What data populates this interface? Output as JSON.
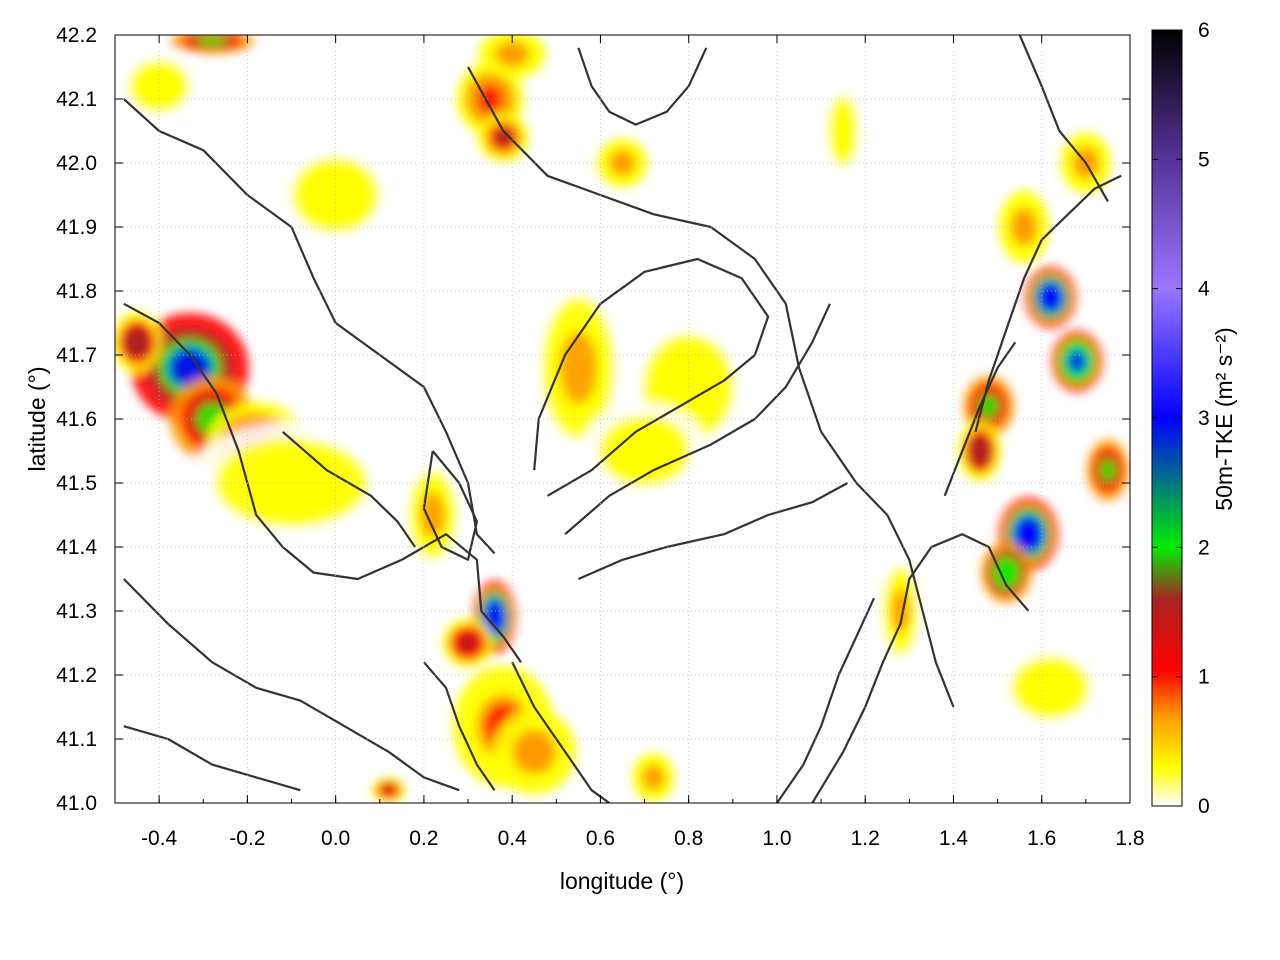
{
  "chart_data": {
    "type": "heatmap",
    "xlabel": "longitude (°)",
    "ylabel": "latitude (°)",
    "colorbar_label": "50m-TKE (m² s⁻²)",
    "xlim": [
      -0.5,
      1.8
    ],
    "ylim": [
      41.0,
      42.2
    ],
    "x_ticks": [
      "-0.4",
      "-0.2",
      "0.0",
      "0.2",
      "0.4",
      "0.6",
      "0.8",
      "1.0",
      "1.2",
      "1.4",
      "1.6",
      "1.8"
    ],
    "x_tick_values": [
      -0.4,
      -0.2,
      0.0,
      0.2,
      0.4,
      0.6,
      0.8,
      1.0,
      1.2,
      1.4,
      1.6,
      1.8
    ],
    "y_ticks": [
      "41.0",
      "41.1",
      "41.2",
      "41.3",
      "41.4",
      "41.5",
      "41.6",
      "41.7",
      "41.8",
      "41.9",
      "42.0",
      "42.1",
      "42.2"
    ],
    "y_tick_values": [
      41.0,
      41.1,
      41.2,
      41.3,
      41.4,
      41.5,
      41.6,
      41.7,
      41.8,
      41.9,
      42.0,
      42.1,
      42.2
    ],
    "colorbar_range": [
      0,
      6
    ],
    "colorbar_ticks": [
      "0",
      "1",
      "2",
      "3",
      "4",
      "5",
      "6"
    ],
    "colorbar_tick_values": [
      0,
      1,
      2,
      3,
      4,
      5,
      6
    ],
    "grid": true,
    "colormap": [
      {
        "v": 0.0,
        "color": "#ffffff"
      },
      {
        "v": 0.3,
        "color": "#ffff00"
      },
      {
        "v": 0.7,
        "color": "#ff9900"
      },
      {
        "v": 1.05,
        "color": "#ff0000"
      },
      {
        "v": 1.6,
        "color": "#aa2222"
      },
      {
        "v": 2.0,
        "color": "#00ee00"
      },
      {
        "v": 3.0,
        "color": "#0000ff"
      },
      {
        "v": 4.0,
        "color": "#9977ff"
      },
      {
        "v": 5.0,
        "color": "#553399"
      },
      {
        "v": 6.0,
        "color": "#000000"
      }
    ],
    "tke_hotspots": [
      {
        "lon": -0.33,
        "lat": 41.68,
        "tke": 3.6,
        "rlon": 0.14,
        "rlat": 0.09
      },
      {
        "lon": -0.28,
        "lat": 41.6,
        "tke": 2.6,
        "rlon": 0.1,
        "rlat": 0.07
      },
      {
        "lon": -0.18,
        "lat": 41.56,
        "tke": 1.3,
        "rlon": 0.12,
        "rlat": 0.07
      },
      {
        "lon": -0.45,
        "lat": 41.72,
        "tke": 2.2,
        "rlon": 0.06,
        "rlat": 0.05
      },
      {
        "lon": -0.1,
        "lat": 41.5,
        "tke": 0.6,
        "rlon": 0.25,
        "rlat": 0.1
      },
      {
        "lon": 0.36,
        "lat": 41.29,
        "tke": 4.2,
        "rlon": 0.05,
        "rlat": 0.06
      },
      {
        "lon": 0.3,
        "lat": 41.25,
        "tke": 2.0,
        "rlon": 0.06,
        "rlat": 0.04
      },
      {
        "lon": 0.38,
        "lat": 41.12,
        "tke": 1.2,
        "rlon": 0.12,
        "rlat": 0.1
      },
      {
        "lon": 0.45,
        "lat": 41.08,
        "tke": 1.0,
        "rlon": 0.1,
        "rlat": 0.07
      },
      {
        "lon": 0.55,
        "lat": 41.68,
        "tke": 0.8,
        "rlon": 0.12,
        "rlat": 0.16
      },
      {
        "lon": 0.8,
        "lat": 41.65,
        "tke": 0.7,
        "rlon": 0.15,
        "rlat": 0.12
      },
      {
        "lon": 0.7,
        "lat": 41.55,
        "tke": 0.6,
        "rlon": 0.15,
        "rlat": 0.08
      },
      {
        "lon": 0.22,
        "lat": 41.45,
        "tke": 0.8,
        "rlon": 0.08,
        "rlat": 0.1
      },
      {
        "lon": 0.35,
        "lat": 42.1,
        "tke": 1.3,
        "rlon": 0.08,
        "rlat": 0.06
      },
      {
        "lon": 0.38,
        "lat": 42.04,
        "tke": 1.8,
        "rlon": 0.06,
        "rlat": 0.04
      },
      {
        "lon": 0.65,
        "lat": 42.0,
        "tke": 1.0,
        "rlon": 0.06,
        "rlat": 0.04
      },
      {
        "lon": 0.4,
        "lat": 42.17,
        "tke": 1.1,
        "rlon": 0.08,
        "rlat": 0.04
      },
      {
        "lon": 1.62,
        "lat": 41.79,
        "tke": 4.0,
        "rlon": 0.06,
        "rlat": 0.05
      },
      {
        "lon": 1.68,
        "lat": 41.69,
        "tke": 3.8,
        "rlon": 0.06,
        "rlat": 0.05
      },
      {
        "lon": 1.57,
        "lat": 41.42,
        "tke": 4.3,
        "rlon": 0.07,
        "rlat": 0.06
      },
      {
        "lon": 1.52,
        "lat": 41.36,
        "tke": 3.0,
        "rlon": 0.06,
        "rlat": 0.05
      },
      {
        "lon": 1.48,
        "lat": 41.62,
        "tke": 2.4,
        "rlon": 0.06,
        "rlat": 0.05
      },
      {
        "lon": 1.46,
        "lat": 41.55,
        "tke": 2.2,
        "rlon": 0.05,
        "rlat": 0.05
      },
      {
        "lon": 1.75,
        "lat": 41.52,
        "tke": 2.4,
        "rlon": 0.05,
        "rlat": 0.05
      },
      {
        "lon": 1.56,
        "lat": 41.9,
        "tke": 1.0,
        "rlon": 0.06,
        "rlat": 0.06
      },
      {
        "lon": 1.7,
        "lat": 42.0,
        "tke": 1.0,
        "rlon": 0.06,
        "rlat": 0.05
      },
      {
        "lon": 1.28,
        "lat": 41.3,
        "tke": 0.9,
        "rlon": 0.06,
        "rlat": 0.1
      },
      {
        "lon": 0.72,
        "lat": 41.04,
        "tke": 1.1,
        "rlon": 0.05,
        "rlat": 0.04
      },
      {
        "lon": 0.12,
        "lat": 41.02,
        "tke": 2.0,
        "rlon": 0.04,
        "rlat": 0.02
      },
      {
        "lon": -0.28,
        "lat": 42.19,
        "tke": 2.6,
        "rlon": 0.1,
        "rlat": 0.02
      },
      {
        "lon": 1.62,
        "lat": 41.18,
        "tke": 0.5,
        "rlon": 0.18,
        "rlat": 0.1
      },
      {
        "lon": 0.0,
        "lat": 41.95,
        "tke": 0.4,
        "rlon": 0.2,
        "rlat": 0.12
      },
      {
        "lon": -0.4,
        "lat": 42.12,
        "tke": 0.7,
        "rlon": 0.1,
        "rlat": 0.06
      },
      {
        "lon": 1.15,
        "lat": 42.05,
        "tke": 0.6,
        "rlon": 0.05,
        "rlat": 0.08
      }
    ],
    "contour_lines": [
      [
        [
          -0.48,
          41.78
        ],
        [
          -0.4,
          41.75
        ],
        [
          -0.33,
          41.7
        ],
        [
          -0.27,
          41.64
        ],
        [
          -0.22,
          41.55
        ],
        [
          -0.18,
          41.45
        ],
        [
          -0.12,
          41.4
        ],
        [
          -0.05,
          41.36
        ],
        [
          0.05,
          41.35
        ],
        [
          0.15,
          41.38
        ],
        [
          0.25,
          41.42
        ],
        [
          0.32,
          41.38
        ],
        [
          0.33,
          41.3
        ],
        [
          0.38,
          41.26
        ],
        [
          0.42,
          41.22
        ]
      ],
      [
        [
          -0.48,
          42.1
        ],
        [
          -0.4,
          42.05
        ],
        [
          -0.3,
          42.02
        ],
        [
          -0.2,
          41.95
        ],
        [
          -0.1,
          41.9
        ],
        [
          -0.05,
          41.82
        ],
        [
          0.0,
          41.75
        ],
        [
          0.1,
          41.7
        ],
        [
          0.2,
          41.65
        ],
        [
          0.25,
          41.58
        ],
        [
          0.3,
          41.5
        ],
        [
          0.32,
          41.42
        ],
        [
          0.36,
          41.39
        ]
      ],
      [
        [
          0.4,
          41.22
        ],
        [
          0.45,
          41.15
        ],
        [
          0.52,
          41.08
        ],
        [
          0.58,
          41.02
        ],
        [
          0.62,
          41.0
        ]
      ],
      [
        [
          0.3,
          42.15
        ],
        [
          0.38,
          42.05
        ],
        [
          0.48,
          41.98
        ],
        [
          0.6,
          41.95
        ],
        [
          0.72,
          41.92
        ],
        [
          0.85,
          41.9
        ],
        [
          0.95,
          41.85
        ],
        [
          1.02,
          41.78
        ],
        [
          1.05,
          41.68
        ],
        [
          1.1,
          41.58
        ],
        [
          1.18,
          41.5
        ],
        [
          1.25,
          41.45
        ],
        [
          1.3,
          41.38
        ],
        [
          1.33,
          41.3
        ],
        [
          1.36,
          41.22
        ],
        [
          1.4,
          41.15
        ]
      ],
      [
        [
          0.48,
          41.48
        ],
        [
          0.58,
          41.52
        ],
        [
          0.68,
          41.58
        ],
        [
          0.78,
          41.62
        ],
        [
          0.88,
          41.66
        ],
        [
          0.95,
          41.7
        ],
        [
          0.98,
          41.76
        ],
        [
          0.92,
          41.82
        ],
        [
          0.82,
          41.85
        ],
        [
          0.7,
          41.83
        ],
        [
          0.6,
          41.78
        ],
        [
          0.52,
          41.7
        ],
        [
          0.46,
          41.6
        ],
        [
          0.45,
          41.52
        ]
      ],
      [
        [
          0.52,
          41.42
        ],
        [
          0.62,
          41.48
        ],
        [
          0.72,
          41.52
        ],
        [
          0.85,
          41.56
        ],
        [
          0.95,
          41.6
        ],
        [
          1.02,
          41.65
        ],
        [
          1.08,
          41.72
        ],
        [
          1.12,
          41.78
        ]
      ],
      [
        [
          0.55,
          41.35
        ],
        [
          0.65,
          41.38
        ],
        [
          0.75,
          41.4
        ],
        [
          0.88,
          41.42
        ],
        [
          0.98,
          41.45
        ],
        [
          1.08,
          41.47
        ],
        [
          1.16,
          41.5
        ]
      ],
      [
        [
          1.08,
          41.0
        ],
        [
          1.15,
          41.08
        ],
        [
          1.2,
          41.15
        ],
        [
          1.24,
          41.22
        ],
        [
          1.28,
          41.28
        ],
        [
          1.3,
          41.35
        ],
        [
          1.35,
          41.4
        ],
        [
          1.42,
          41.42
        ],
        [
          1.48,
          41.4
        ],
        [
          1.52,
          41.34
        ],
        [
          1.57,
          41.3
        ]
      ],
      [
        [
          1.0,
          41.0
        ],
        [
          1.06,
          41.06
        ],
        [
          1.1,
          41.12
        ],
        [
          1.14,
          41.2
        ],
        [
          1.18,
          41.26
        ],
        [
          1.22,
          41.32
        ]
      ],
      [
        [
          1.45,
          41.58
        ],
        [
          1.48,
          41.66
        ],
        [
          1.52,
          41.74
        ],
        [
          1.56,
          41.82
        ],
        [
          1.6,
          41.88
        ],
        [
          1.66,
          41.92
        ],
        [
          1.72,
          41.96
        ],
        [
          1.78,
          41.98
        ]
      ],
      [
        [
          1.38,
          41.48
        ],
        [
          1.42,
          41.55
        ],
        [
          1.46,
          41.62
        ],
        [
          1.5,
          41.68
        ],
        [
          1.54,
          41.72
        ]
      ],
      [
        [
          0.22,
          41.55
        ],
        [
          0.28,
          41.5
        ],
        [
          0.32,
          41.44
        ],
        [
          0.3,
          41.38
        ],
        [
          0.24,
          41.4
        ],
        [
          0.2,
          41.46
        ],
        [
          0.22,
          41.55
        ]
      ],
      [
        [
          -0.12,
          41.58
        ],
        [
          -0.02,
          41.52
        ],
        [
          0.08,
          41.48
        ],
        [
          0.14,
          41.44
        ],
        [
          0.18,
          41.4
        ]
      ],
      [
        [
          -0.48,
          41.35
        ],
        [
          -0.38,
          41.28
        ],
        [
          -0.28,
          41.22
        ],
        [
          -0.18,
          41.18
        ],
        [
          -0.08,
          41.16
        ],
        [
          0.02,
          41.12
        ],
        [
          0.12,
          41.08
        ],
        [
          0.2,
          41.04
        ],
        [
          0.28,
          41.02
        ]
      ],
      [
        [
          -0.48,
          41.12
        ],
        [
          -0.38,
          41.1
        ],
        [
          -0.28,
          41.06
        ],
        [
          -0.18,
          41.04
        ],
        [
          -0.08,
          41.02
        ]
      ],
      [
        [
          0.2,
          41.22
        ],
        [
          0.25,
          41.18
        ],
        [
          0.28,
          41.12
        ],
        [
          0.32,
          41.06
        ],
        [
          0.36,
          41.02
        ]
      ],
      [
        [
          1.55,
          42.2
        ],
        [
          1.6,
          42.12
        ],
        [
          1.64,
          42.05
        ],
        [
          1.7,
          42.0
        ],
        [
          1.75,
          41.94
        ]
      ],
      [
        [
          0.55,
          42.18
        ],
        [
          0.58,
          42.12
        ],
        [
          0.62,
          42.08
        ],
        [
          0.68,
          42.06
        ],
        [
          0.75,
          42.08
        ],
        [
          0.8,
          42.12
        ],
        [
          0.84,
          42.18
        ]
      ]
    ]
  }
}
